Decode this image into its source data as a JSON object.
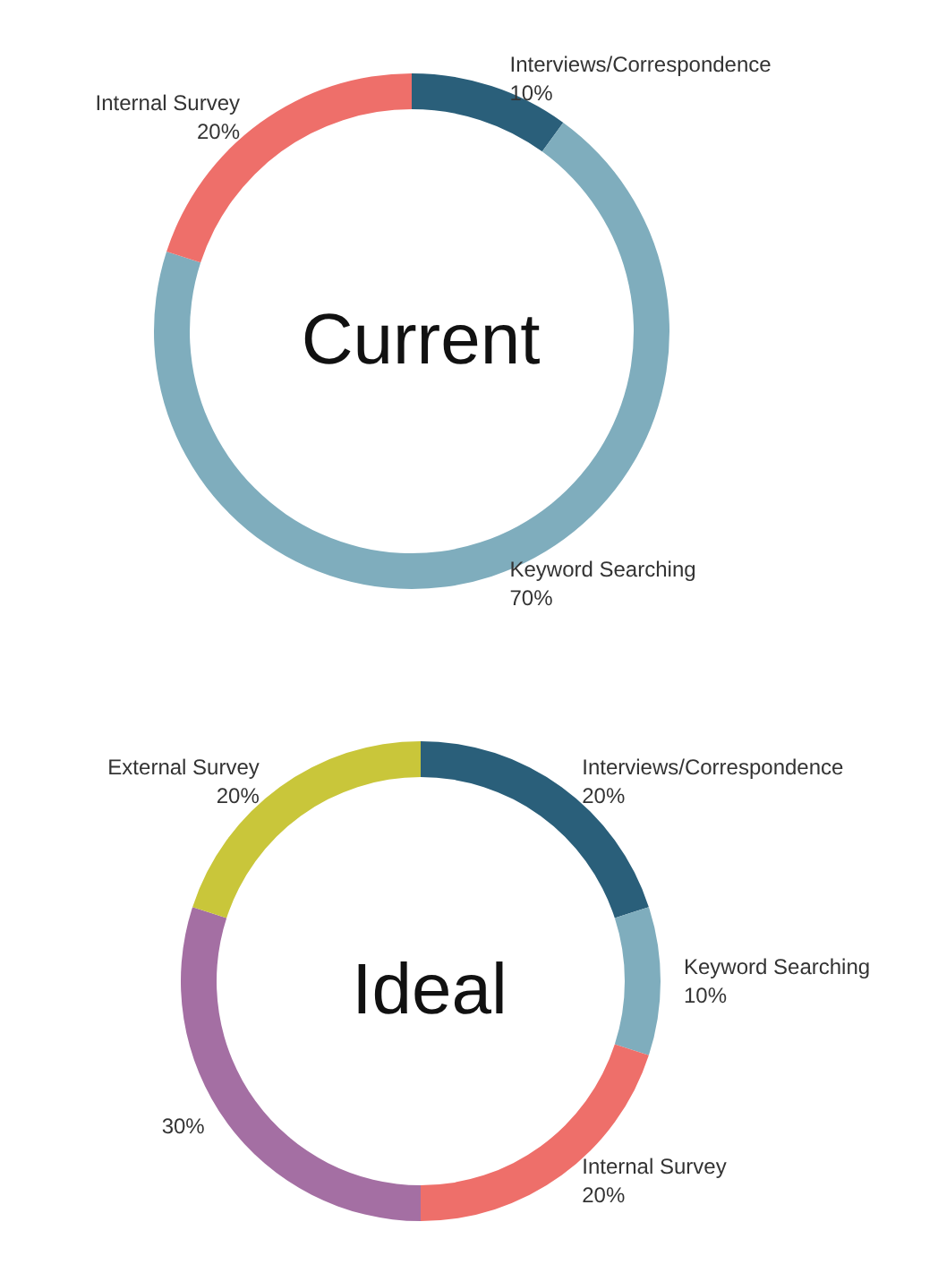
{
  "chart_data": [
    {
      "type": "donut",
      "title": "Current",
      "categories": [
        "Interviews/Correspondence",
        "Keyword Searching",
        "Internal Survey"
      ],
      "values": [
        10,
        70,
        20
      ],
      "value_labels": [
        "10%",
        "70%",
        "20%"
      ],
      "colors": [
        "#2a5f7a",
        "#7fadbd",
        "#ee6f6a"
      ],
      "legend": false
    },
    {
      "type": "donut",
      "title": "Ideal",
      "categories": [
        "Interviews/Correspondence",
        "Keyword Searching",
        "Internal Survey",
        null,
        "External Survey"
      ],
      "values": [
        20,
        10,
        20,
        30,
        20
      ],
      "value_labels": [
        "20%",
        "10%",
        "20%",
        "30%",
        "20%"
      ],
      "colors": [
        "#2a5f7a",
        "#7fadbd",
        "#ee6f6a",
        "#a46fa3",
        "#c9c63a"
      ],
      "legend": false
    }
  ]
}
